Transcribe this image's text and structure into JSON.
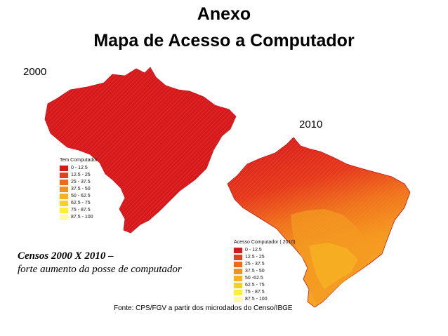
{
  "slide": {
    "title": "Anexo",
    "subtitle": "Mapa de Acesso a Computador"
  },
  "map_2000": {
    "year_label": "2000",
    "legend_title": "Tem Computador",
    "legend": [
      {
        "label": "0 - 12.5",
        "color": "#d7191c"
      },
      {
        "label": "12.5 - 25",
        "color": "#e8411a"
      },
      {
        "label": "25 - 37.5",
        "color": "#f06a1a"
      },
      {
        "label": "37.5 - 50",
        "color": "#f5901c"
      },
      {
        "label": "50 - 62.5",
        "color": "#f9b21f"
      },
      {
        "label": "62.5 - 75",
        "color": "#fbd025"
      },
      {
        "label": "75 - 87.5",
        "color": "#fdf032"
      },
      {
        "label": "87.5 - 100",
        "color": "#fffca0"
      }
    ]
  },
  "map_2010": {
    "year_label": "2010",
    "legend_title": "Acesso Computador  ( 2010)",
    "legend": [
      {
        "label": "0 - 12.5",
        "color": "#d7191c"
      },
      {
        "label": "12.5 - 25",
        "color": "#e8411a"
      },
      {
        "label": "25 - 37.5",
        "color": "#f06a1a"
      },
      {
        "label": "37.5 - 50",
        "color": "#f5901c"
      },
      {
        "label": "50 -62.5",
        "color": "#f9b21f"
      },
      {
        "label": "62.5 - 75",
        "color": "#fbd025"
      },
      {
        "label": "75 - 87.5",
        "color": "#fdf032"
      },
      {
        "label": "87.5 - 100",
        "color": "#fffca0"
      }
    ]
  },
  "caption": {
    "line1": "Censos 2000 X 2010 –",
    "line2": "forte aumento da posse de computador"
  },
  "source": "Fonte: CPS/FGV a partir dos microdados do Censo/IBGE"
}
